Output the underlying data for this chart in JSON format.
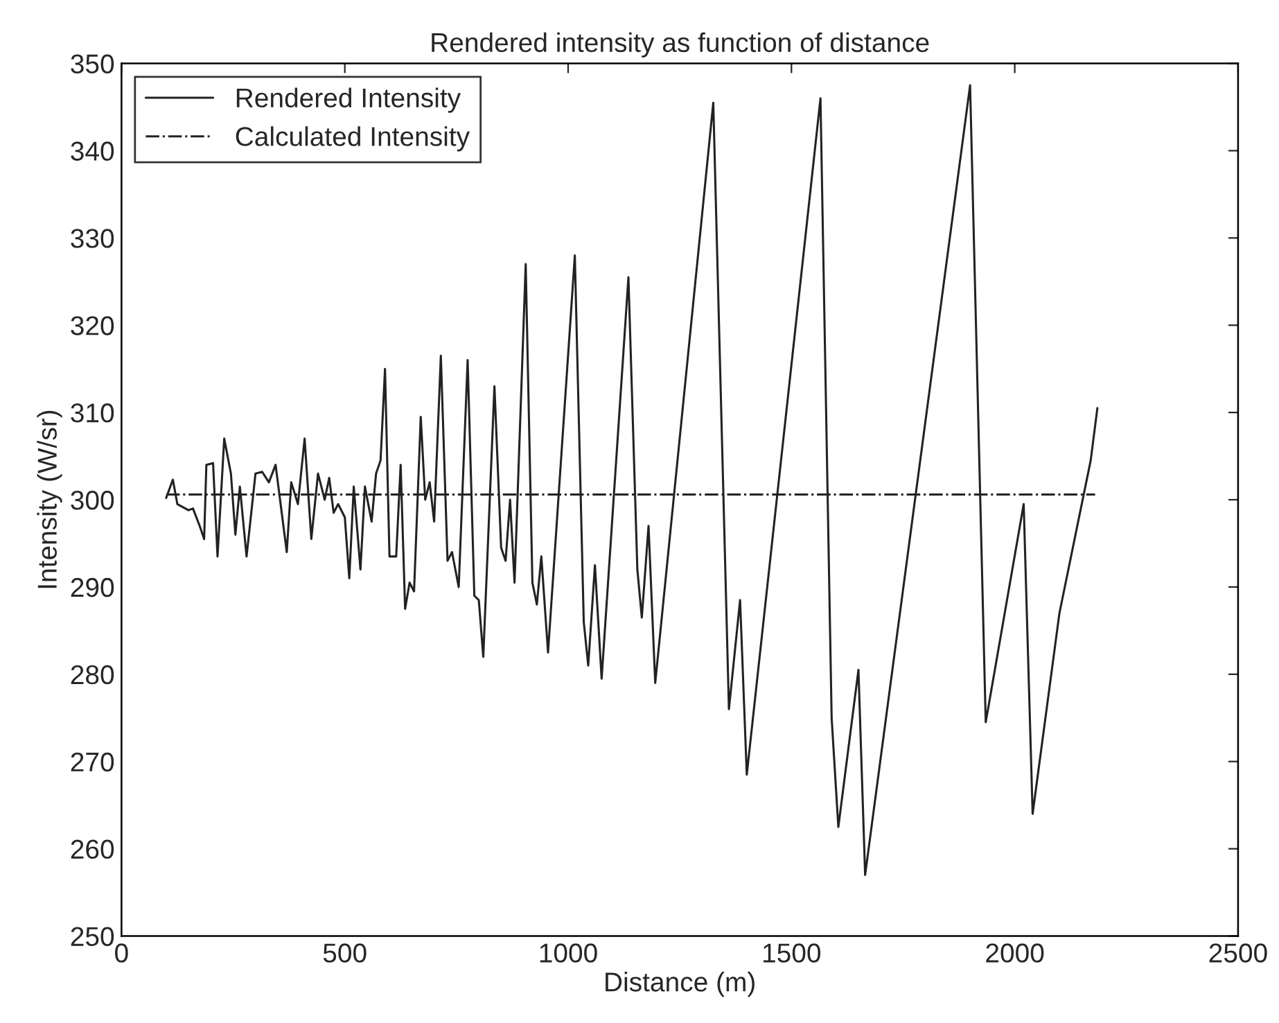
{
  "chart_data": {
    "type": "line",
    "title": "Rendered intensity as function of distance",
    "xlabel": "Distance (m)",
    "ylabel": "Intensity (W/sr)",
    "xlim": [
      0,
      2500
    ],
    "xticks": [
      0,
      500,
      1000,
      1500,
      2000,
      2500
    ],
    "ylim": [
      250,
      350
    ],
    "yticks": [
      250,
      260,
      270,
      280,
      290,
      300,
      310,
      320,
      330,
      340,
      350
    ],
    "grid": false,
    "legend": "top left",
    "marker": "none",
    "series": [
      {
        "name": "Rendered Intensity",
        "color": "#222222",
        "line_style": "solid",
        "x": [
          100,
          115,
          125,
          150,
          160,
          175,
          185,
          190,
          205,
          215,
          230,
          245,
          255,
          265,
          280,
          300,
          315,
          330,
          345,
          360,
          370,
          380,
          395,
          410,
          425,
          440,
          455,
          465,
          475,
          485,
          500,
          510,
          520,
          535,
          545,
          560,
          570,
          580,
          590,
          600,
          615,
          625,
          635,
          645,
          655,
          670,
          680,
          690,
          700,
          715,
          730,
          740,
          755,
          775,
          790,
          800,
          810,
          835,
          850,
          860,
          870,
          880,
          905,
          920,
          930,
          940,
          955,
          1015,
          1035,
          1045,
          1060,
          1075,
          1135,
          1155,
          1165,
          1180,
          1195,
          1325,
          1360,
          1385,
          1400,
          1565,
          1590,
          1605,
          1650,
          1665,
          1900,
          1935,
          2020,
          2040,
          2100,
          2170,
          2185
        ],
        "values": [
          300.2,
          302.3,
          299.5,
          298.8,
          299.0,
          297,
          295.5,
          304,
          304.2,
          293.5,
          307,
          303,
          296,
          301.5,
          293.5,
          303,
          303.2,
          302,
          304,
          298,
          294,
          302,
          299.5,
          307,
          295.5,
          303,
          300,
          302.5,
          298.5,
          299.5,
          298,
          291,
          301.5,
          292,
          301.5,
          297.5,
          303,
          304.5,
          315,
          293.5,
          293.5,
          304,
          287.5,
          290.5,
          289.5,
          309.5,
          300,
          302,
          297.5,
          316.5,
          293,
          294,
          290,
          316,
          289,
          288.5,
          282,
          313,
          294.5,
          293,
          300,
          290.5,
          327,
          290.5,
          288,
          293.5,
          282.5,
          328,
          286,
          281,
          292.5,
          279.5,
          325.5,
          292,
          286.5,
          297,
          279,
          345.5,
          276,
          288.5,
          268.5,
          346,
          275,
          262.5,
          280.5,
          257,
          347.5,
          274.5,
          299.5,
          264,
          287,
          304.5,
          310.5
        ]
      },
      {
        "name": "Calculated Intensity",
        "color": "#222222",
        "line_style": "dashdot",
        "x": [
          100,
          2180
        ],
        "values": [
          300.6,
          300.6
        ]
      }
    ]
  }
}
